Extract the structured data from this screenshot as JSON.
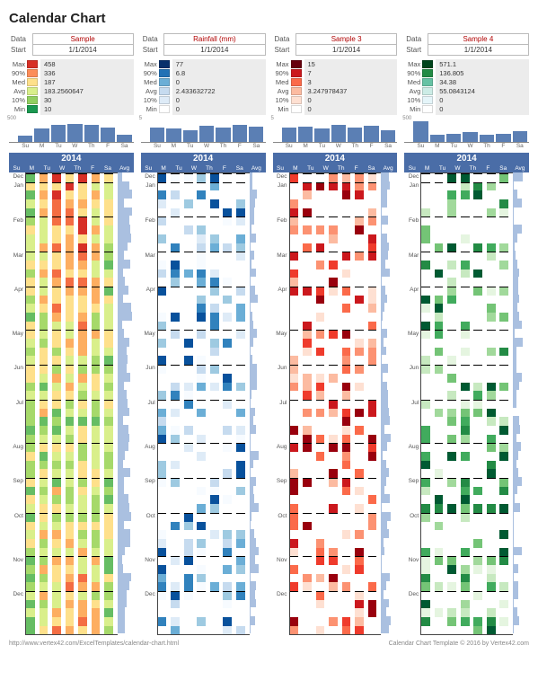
{
  "title": "Calendar Chart",
  "year": "2014",
  "day_labels": [
    "Su",
    "M",
    "Tu",
    "W",
    "Th",
    "F",
    "Sa",
    "Avg"
  ],
  "stat_labels": [
    "Max",
    "90%",
    "Med",
    "Avg",
    "10%",
    "Min"
  ],
  "bar_ymax_label": "500",
  "footer_left": "http://www.vertex42.com/ExcelTemplates/calendar-chart.html",
  "footer_right": "Calendar Chart Template © 2016 by Vertex42.com",
  "panels": [
    {
      "name": "Sample",
      "start": "1/1/2014",
      "ymax": "500",
      "stats": [
        "458",
        "336",
        "187",
        "183.2560647",
        "30",
        "10"
      ],
      "swatches": [
        "#d73027",
        "#fc8d59",
        "#fee08b",
        "#d9ef8b",
        "#91cf60",
        "#1a9850"
      ],
      "mini_bars": [
        0.25,
        0.55,
        0.7,
        0.75,
        0.72,
        0.6,
        0.3
      ],
      "palette": [
        "#1a9850",
        "#66bd63",
        "#a6d96a",
        "#d9ef8b",
        "#fee08b",
        "#fdae61",
        "#f46d43",
        "#d73027"
      ]
    },
    {
      "name": "Rainfall (mm)",
      "start": "1/1/2014",
      "ymax": "5",
      "stats": [
        "77",
        "6.8",
        "0",
        "2.433632722",
        "0",
        "0"
      ],
      "swatches": [
        "#08306b",
        "#2171b5",
        "#6baed6",
        "#c6dbef",
        "#deebf7",
        "#ffffff"
      ],
      "mini_bars": [
        0.6,
        0.55,
        0.5,
        0.65,
        0.58,
        0.7,
        0.62
      ],
      "palette": [
        "#ffffff",
        "#f7fbff",
        "#deebf7",
        "#c6dbef",
        "#9ecae1",
        "#6baed6",
        "#3182bd",
        "#08519c"
      ]
    },
    {
      "name": "Sample 3",
      "start": "1/1/2014",
      "ymax": "5",
      "stats": [
        "15",
        "7",
        "3",
        "3.247978437",
        "0",
        "0"
      ],
      "swatches": [
        "#67000d",
        "#cb181d",
        "#fb6a4a",
        "#fcbba1",
        "#fee0d2",
        "#ffffff"
      ],
      "mini_bars": [
        0.58,
        0.62,
        0.55,
        0.7,
        0.6,
        0.65,
        0.5
      ],
      "palette": [
        "#ffffff",
        "#fee0d2",
        "#fcbba1",
        "#fc9272",
        "#fb6a4a",
        "#ef3b2c",
        "#cb181d",
        "#99000d"
      ]
    },
    {
      "name": "Sample 4",
      "start": "1/1/2014",
      "ymax": "500",
      "stats": [
        "571.1",
        "136.805",
        "34.38",
        "55.0843124",
        "0",
        "0"
      ],
      "swatches": [
        "#00441b",
        "#238b45",
        "#66c2a4",
        "#ccece6",
        "#e5f5f9",
        "#ffffff"
      ],
      "mini_bars": [
        0.85,
        0.3,
        0.35,
        0.4,
        0.3,
        0.35,
        0.45
      ],
      "palette": [
        "#ffffff",
        "#e5f5e0",
        "#c7e9c0",
        "#a1d99b",
        "#74c476",
        "#41ab5d",
        "#238b45",
        "#005a32"
      ]
    }
  ],
  "months": [
    "Dec",
    "Jan",
    "",
    "",
    "",
    "Feb",
    "",
    "",
    "",
    "Mar",
    "",
    "",
    "",
    "Apr",
    "",
    "",
    "",
    "",
    "May",
    "",
    "",
    "",
    "Jun",
    "",
    "",
    "",
    "Jul",
    "",
    "",
    "",
    "",
    "Aug",
    "",
    "",
    "",
    "Sep",
    "",
    "",
    "",
    "Oct",
    "",
    "",
    "",
    "",
    "Nov",
    "",
    "",
    "",
    "Dec",
    "",
    "",
    "",
    ""
  ],
  "weeks_count": 53
}
